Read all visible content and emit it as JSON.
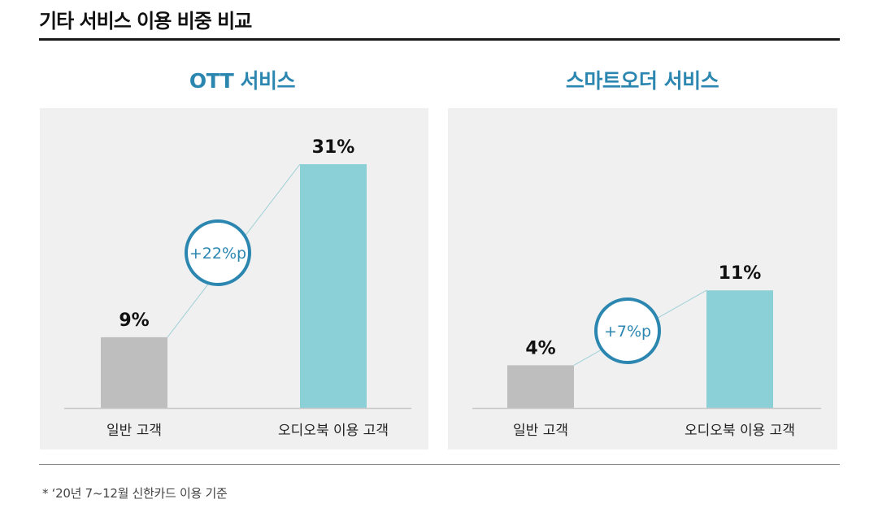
{
  "header": {
    "title": "기타 서비스 이용 비중 비교"
  },
  "colors": {
    "accent": "#2b86b0",
    "gray_bar": "#bebebe",
    "teal_bar": "#8bcfd7",
    "panel_bg": "#f0f0f1"
  },
  "chart_data": [
    {
      "type": "bar",
      "title": "OTT 서비스",
      "categories": [
        "일반 고객",
        "오디오북 이용 고객"
      ],
      "values": [
        9,
        31
      ],
      "value_labels": [
        "9%",
        "31%"
      ],
      "difference_label": "+22%p",
      "ylim": [
        0,
        34
      ],
      "grid": false
    },
    {
      "type": "bar",
      "title": "스마트오더 서비스",
      "categories": [
        "일반 고객",
        "오디오북 이용 고객"
      ],
      "values": [
        4,
        11
      ],
      "value_labels": [
        "4%",
        "11%"
      ],
      "difference_label": "+7%p",
      "ylim": [
        0,
        25
      ],
      "grid": false
    }
  ],
  "footnote": "* ‘20년 7~12월 신한카드 이용 기준"
}
